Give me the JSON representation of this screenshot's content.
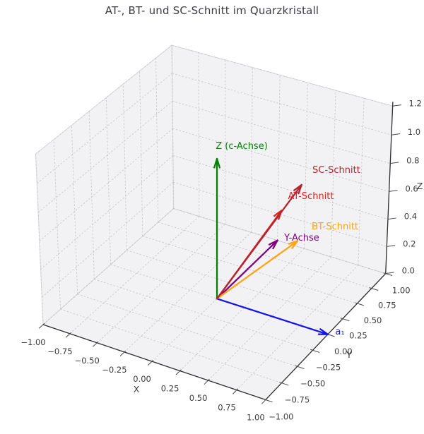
{
  "title": "AT-, BT- und SC-Schnitt im Quarzkristall",
  "chart_data": {
    "type": "quiver3d",
    "title": "AT-, BT- und SC-Schnitt im Quarzkristall",
    "grid": true,
    "projection": "perspective 3d, elev≈32°, azim≈-60°",
    "axes": {
      "x": {
        "label": "X",
        "range": [
          -1.0,
          1.0
        ],
        "tick_labels": [
          "−1.00",
          "−0.75",
          "−0.50",
          "−0.25",
          "0.00",
          "0.25",
          "0.50",
          "0.75",
          "1.00"
        ],
        "tick_values": [
          -1.0,
          -0.75,
          -0.5,
          -0.25,
          0.0,
          0.25,
          0.5,
          0.75,
          1.0
        ]
      },
      "y": {
        "label": "Y",
        "range": [
          -1.0,
          1.0
        ],
        "tick_labels": [
          "−1.00",
          "−0.75",
          "−0.50",
          "−0.25",
          "0.00",
          "0.25",
          "0.50",
          "0.75",
          "1.00"
        ],
        "tick_values": [
          -1.0,
          -0.75,
          -0.5,
          -0.25,
          0.0,
          0.25,
          0.5,
          0.75,
          1.0
        ]
      },
      "z": {
        "label": "Z",
        "range": [
          0.0,
          1.2
        ],
        "tick_labels": [
          "0.0",
          "0.2",
          "0.4",
          "0.6",
          "0.8",
          "1.0",
          "1.2"
        ],
        "tick_values": [
          0.0,
          0.2,
          0.4,
          0.6,
          0.8,
          1.0,
          1.2
        ]
      }
    },
    "vectors": [
      {
        "label": "Z (c-Achse)",
        "color": "#088008",
        "origin": [
          0,
          0,
          0
        ],
        "tip": [
          0,
          0,
          1
        ]
      },
      {
        "label": "a₁",
        "color": "#1414e6",
        "origin": [
          0,
          0,
          0
        ],
        "tip": [
          1,
          0,
          0
        ]
      },
      {
        "label": "Y-Achse",
        "color": "#800080",
        "origin": [
          0,
          0,
          0
        ],
        "tip": [
          0,
          1,
          0
        ]
      },
      {
        "label": "AT-Schnitt",
        "color": "#e02424",
        "origin": [
          0,
          0,
          0
        ],
        "tip": [
          0.25,
          0.6,
          0.45
        ]
      },
      {
        "label": "BT-Schnitt",
        "color": "#ffa417",
        "origin": [
          0,
          0,
          0
        ],
        "tip": [
          0.31,
          0.77,
          0.17
        ]
      },
      {
        "label": "SC-Schnitt",
        "color": "#b22530",
        "origin": [
          0,
          0,
          0
        ],
        "tip": [
          0.33,
          0.78,
          0.58
        ]
      }
    ]
  }
}
